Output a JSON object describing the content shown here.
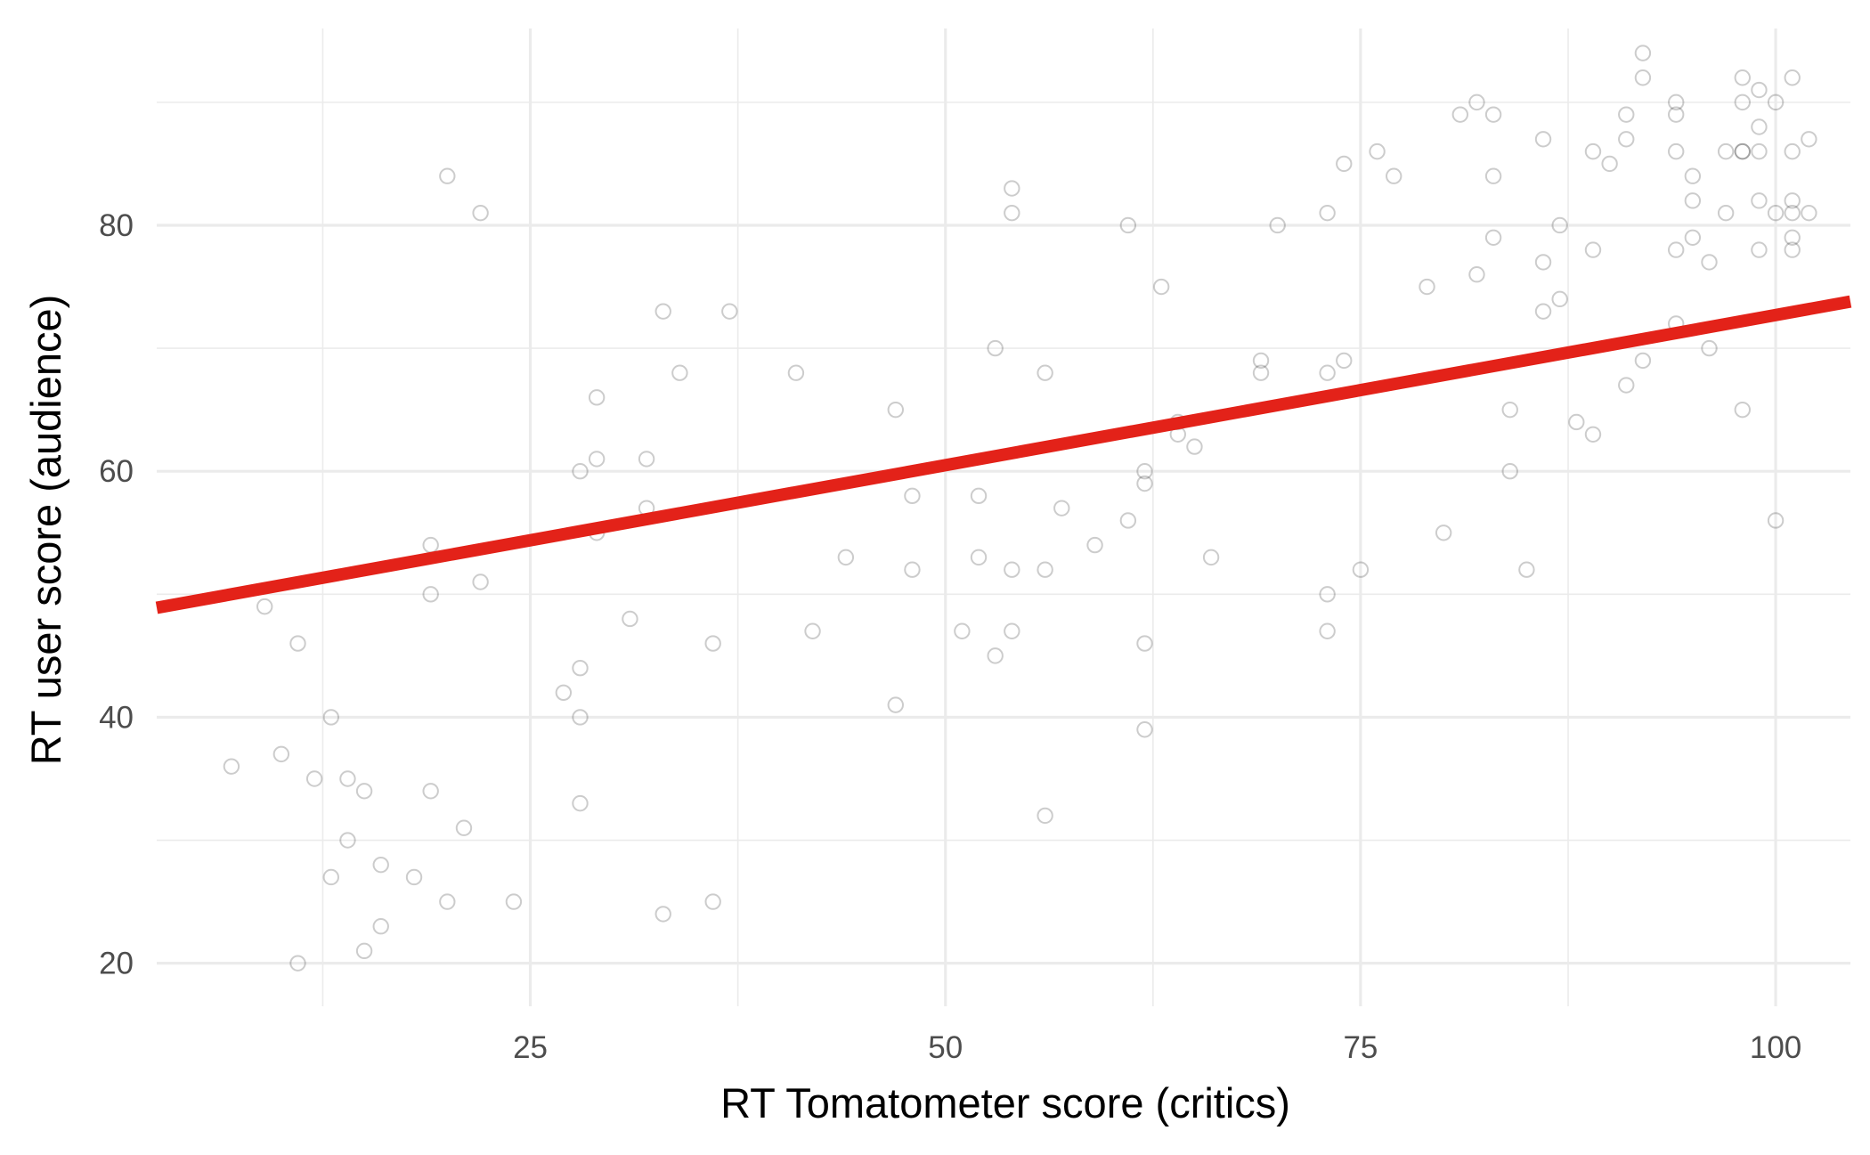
{
  "chart_data": {
    "type": "scatter",
    "xlabel": "RT Tomatometer score (critics)",
    "ylabel": "RT user score (audience)",
    "xlim": [
      2.5,
      104.5
    ],
    "ylim": [
      16.5,
      96.0
    ],
    "x_ticks": [
      25,
      50,
      75,
      100
    ],
    "y_ticks": [
      20,
      40,
      60,
      80
    ],
    "x_minor": [
      12.5,
      37.5,
      62.5,
      87.5
    ],
    "y_minor": [
      30,
      50,
      70,
      90
    ],
    "grid": true,
    "legend": "none",
    "colors": {
      "points": "#000000",
      "fit_line": "#e32219",
      "grid": "#ebebeb"
    },
    "fit_line": {
      "x": [
        2.5,
        104.5
      ],
      "y": [
        48.9,
        73.8
      ]
    },
    "points": [
      [
        7,
        36
      ],
      [
        9,
        49
      ],
      [
        10,
        37
      ],
      [
        11,
        46
      ],
      [
        11,
        20
      ],
      [
        12,
        35
      ],
      [
        13,
        40
      ],
      [
        13,
        27
      ],
      [
        14,
        35
      ],
      [
        14,
        30
      ],
      [
        15,
        34
      ],
      [
        15,
        21
      ],
      [
        16,
        28
      ],
      [
        16,
        23
      ],
      [
        18,
        27
      ],
      [
        19,
        34
      ],
      [
        19,
        50
      ],
      [
        19,
        54
      ],
      [
        20,
        84
      ],
      [
        20,
        25
      ],
      [
        21,
        31
      ],
      [
        22,
        81
      ],
      [
        22,
        51
      ],
      [
        24,
        25
      ],
      [
        27,
        42
      ],
      [
        28,
        60
      ],
      [
        28,
        44
      ],
      [
        28,
        40
      ],
      [
        28,
        33
      ],
      [
        29,
        66
      ],
      [
        29,
        61
      ],
      [
        29,
        55
      ],
      [
        31,
        48
      ],
      [
        32,
        61
      ],
      [
        32,
        57
      ],
      [
        33,
        73
      ],
      [
        33,
        24
      ],
      [
        34,
        68
      ],
      [
        36,
        46
      ],
      [
        36,
        25
      ],
      [
        37,
        73
      ],
      [
        41,
        68
      ],
      [
        42,
        47
      ],
      [
        44,
        53
      ],
      [
        47,
        65
      ],
      [
        47,
        41
      ],
      [
        48,
        58
      ],
      [
        48,
        52
      ],
      [
        51,
        47
      ],
      [
        52,
        58
      ],
      [
        52,
        53
      ],
      [
        53,
        70
      ],
      [
        53,
        45
      ],
      [
        54,
        83
      ],
      [
        54,
        81
      ],
      [
        54,
        52
      ],
      [
        54,
        47
      ],
      [
        56,
        68
      ],
      [
        56,
        52
      ],
      [
        56,
        32
      ],
      [
        57,
        57
      ],
      [
        59,
        54
      ],
      [
        61,
        80
      ],
      [
        61,
        56
      ],
      [
        62,
        60
      ],
      [
        62,
        59
      ],
      [
        62,
        46
      ],
      [
        62,
        39
      ],
      [
        63,
        75
      ],
      [
        64,
        64
      ],
      [
        64,
        63
      ],
      [
        65,
        62
      ],
      [
        66,
        53
      ],
      [
        69,
        69
      ],
      [
        69,
        68
      ],
      [
        70,
        80
      ],
      [
        73,
        81
      ],
      [
        73,
        68
      ],
      [
        73,
        50
      ],
      [
        73,
        47
      ],
      [
        74,
        85
      ],
      [
        74,
        69
      ],
      [
        75,
        52
      ],
      [
        76,
        86
      ],
      [
        77,
        84
      ],
      [
        79,
        75
      ],
      [
        80,
        55
      ],
      [
        81,
        89
      ],
      [
        82,
        90
      ],
      [
        82,
        76
      ],
      [
        83,
        89
      ],
      [
        83,
        84
      ],
      [
        83,
        79
      ],
      [
        84,
        65
      ],
      [
        84,
        60
      ],
      [
        85,
        52
      ],
      [
        86,
        87
      ],
      [
        86,
        77
      ],
      [
        86,
        73
      ],
      [
        87,
        80
      ],
      [
        87,
        74
      ],
      [
        88,
        64
      ],
      [
        89,
        86
      ],
      [
        89,
        78
      ],
      [
        89,
        63
      ],
      [
        90,
        85
      ],
      [
        91,
        89
      ],
      [
        91,
        87
      ],
      [
        91,
        67
      ],
      [
        92,
        94
      ],
      [
        92,
        92
      ],
      [
        92,
        69
      ],
      [
        94,
        90
      ],
      [
        94,
        89
      ],
      [
        94,
        86
      ],
      [
        94,
        78
      ],
      [
        94,
        72
      ],
      [
        95,
        84
      ],
      [
        95,
        82
      ],
      [
        95,
        79
      ],
      [
        96,
        77
      ],
      [
        96,
        70
      ],
      [
        97,
        86
      ],
      [
        97,
        81
      ],
      [
        98,
        92
      ],
      [
        98,
        90
      ],
      [
        98,
        86
      ],
      [
        98,
        86
      ],
      [
        98,
        65
      ],
      [
        99,
        91
      ],
      [
        99,
        88
      ],
      [
        99,
        86
      ],
      [
        99,
        82
      ],
      [
        99,
        78
      ],
      [
        100,
        90
      ],
      [
        100,
        81
      ],
      [
        100,
        56
      ],
      [
        101,
        92
      ],
      [
        101,
        86
      ],
      [
        101,
        82
      ],
      [
        101,
        81
      ],
      [
        101,
        79
      ],
      [
        101,
        78
      ],
      [
        102,
        87
      ],
      [
        102,
        81
      ]
    ]
  }
}
